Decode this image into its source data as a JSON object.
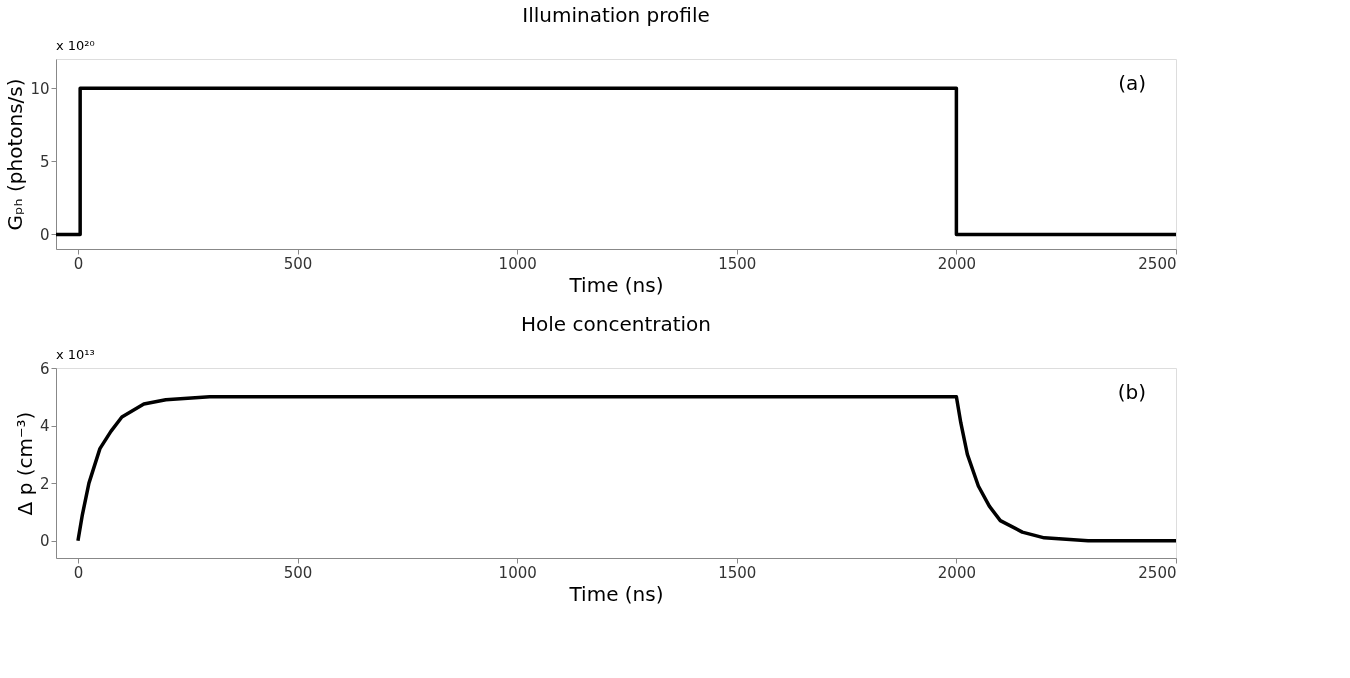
{
  "chart_data": [
    {
      "type": "line",
      "title": "Illumination profile",
      "xlabel": "Time (ns)",
      "ylabel": "Gₚₕ (photons/s)",
      "x": [
        -50,
        5,
        5,
        2000,
        2000,
        2500
      ],
      "series": [
        {
          "color": "#000000",
          "values": [
            0,
            0,
            10,
            10,
            0,
            0
          ]
        }
      ],
      "xlim": [
        -50,
        2500
      ],
      "xticks": [
        0,
        500,
        1000,
        1500,
        2000,
        2500
      ],
      "ylim": [
        -1,
        12
      ],
      "yticks": [
        0,
        5,
        10
      ],
      "annotations": [
        "x 10²⁰",
        "(a)"
      ],
      "grid": false,
      "line_style": "solid"
    },
    {
      "type": "line",
      "title": "Hole concentration",
      "xlabel": "Time (ns)",
      "ylabel": "Δ p (cm⁻³)",
      "x": [
        0,
        10,
        25,
        50,
        75,
        100,
        150,
        200,
        300,
        500,
        1000,
        1500,
        2000,
        2010,
        2025,
        2050,
        2075,
        2100,
        2150,
        2200,
        2300,
        2500
      ],
      "series": [
        {
          "color": "#000000",
          "values": [
            0,
            0.9,
            2,
            3.2,
            3.8,
            4.3,
            4.75,
            4.9,
            5,
            5,
            5,
            5,
            5,
            4.1,
            3,
            1.9,
            1.2,
            0.7,
            0.3,
            0.1,
            0,
            0
          ]
        }
      ],
      "xlim": [
        -50,
        2500
      ],
      "xticks": [
        0,
        500,
        1000,
        1500,
        2000,
        2500
      ],
      "ylim": [
        -0.6,
        6
      ],
      "yticks": [
        0,
        2,
        4,
        6
      ],
      "annotations": [
        "x 10¹³",
        "(b)"
      ],
      "grid": false,
      "line_style": "solid"
    }
  ]
}
